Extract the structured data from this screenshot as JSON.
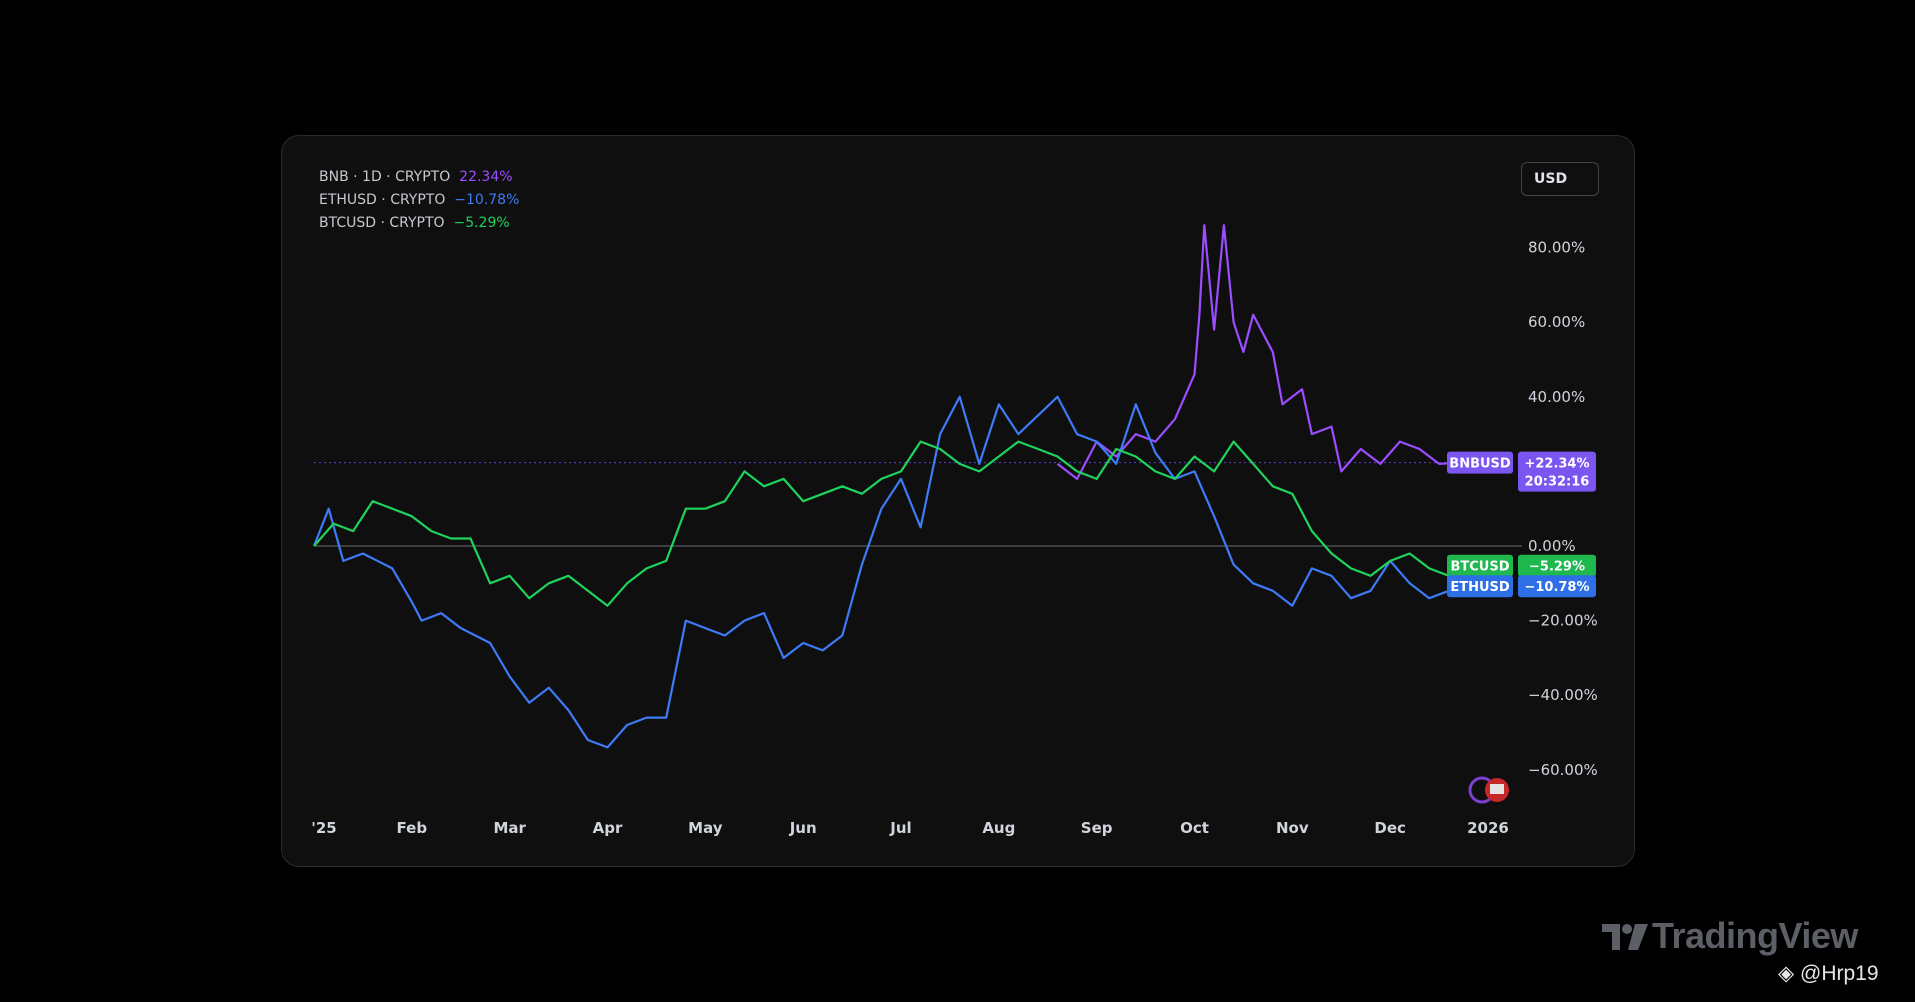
{
  "legend": [
    {
      "symbol": "BNB · 1D · CRYPTO",
      "change": "22.34%",
      "color": "#9b4dff"
    },
    {
      "symbol": "ETHUSD · CRYPTO",
      "change": "−10.78%",
      "color": "#3d7bf7"
    },
    {
      "symbol": "BTCUSD · CRYPTO",
      "change": "−5.29%",
      "color": "#1fd35c"
    }
  ],
  "currency_button": "USD",
  "price_labels": {
    "bnb": {
      "name": "BNBUSD",
      "value": "+22.34%",
      "countdown": "20:32:16",
      "color": "#7b55f0"
    },
    "btc": {
      "name": "BTCUSD",
      "value": "−5.29%",
      "color": "#1fb84f"
    },
    "eth": {
      "name": "ETHUSD",
      "value": "−10.78%",
      "color": "#2f6fe6"
    }
  },
  "zero_label": "0.00%",
  "branding": {
    "tradingview": "TradingView",
    "handle": "@Hrp19"
  },
  "chart_data": {
    "type": "line",
    "title": "",
    "xlabel": "",
    "ylabel": "",
    "x_tick_labels": [
      "'25",
      "Feb",
      "Mar",
      "Apr",
      "May",
      "Jun",
      "Jul",
      "Aug",
      "Sep",
      "Oct",
      "Nov",
      "Dec",
      "2026"
    ],
    "y_ticks": [
      "80.00%",
      "60.00%",
      "40.00%",
      "−20.00%",
      "−40.00%",
      "−60.00%"
    ],
    "ylim": [
      -70,
      90
    ],
    "x_range_months": [
      0,
      12.3
    ],
    "series": [
      {
        "name": "BNBUSD",
        "color": "#9b4dff",
        "x": [
          7.6,
          7.8,
          8.0,
          8.2,
          8.4,
          8.6,
          8.8,
          9.0,
          9.05,
          9.1,
          9.2,
          9.3,
          9.4,
          9.5,
          9.6,
          9.8,
          9.9,
          10.1,
          10.2,
          10.4,
          10.5,
          10.7,
          10.9,
          11.1,
          11.3,
          11.5,
          11.7
        ],
        "values": [
          22,
          18,
          28,
          24,
          30,
          28,
          34,
          46,
          62,
          86,
          58,
          86,
          60,
          52,
          62,
          52,
          38,
          42,
          30,
          32,
          20,
          26,
          22,
          28,
          26,
          22,
          22.34
        ]
      },
      {
        "name": "ETHUSD",
        "color": "#3d7bf7",
        "x": [
          0,
          0.15,
          0.3,
          0.5,
          0.8,
          1.0,
          1.1,
          1.3,
          1.5,
          1.8,
          2.0,
          2.2,
          2.4,
          2.6,
          2.8,
          3.0,
          3.2,
          3.4,
          3.6,
          3.8,
          4.0,
          4.2,
          4.4,
          4.6,
          4.8,
          5.0,
          5.2,
          5.4,
          5.6,
          5.8,
          6.0,
          6.2,
          6.4,
          6.6,
          6.8,
          7.0,
          7.2,
          7.4,
          7.6,
          7.8,
          8.0,
          8.2,
          8.4,
          8.6,
          8.8,
          9.0,
          9.2,
          9.4,
          9.6,
          9.8,
          10.0,
          10.2,
          10.4,
          10.6,
          10.8,
          11.0,
          11.2,
          11.4,
          11.6,
          11.75
        ],
        "values": [
          0,
          10,
          -4,
          -2,
          -6,
          -15,
          -20,
          -18,
          -22,
          -26,
          -35,
          -42,
          -38,
          -44,
          -52,
          -54,
          -48,
          -46,
          -46,
          -20,
          -22,
          -24,
          -20,
          -18,
          -30,
          -26,
          -28,
          -24,
          -5,
          10,
          18,
          5,
          30,
          40,
          22,
          38,
          30,
          35,
          40,
          30,
          28,
          22,
          38,
          25,
          18,
          20,
          8,
          -5,
          -10,
          -12,
          -16,
          -6,
          -8,
          -14,
          -12,
          -4,
          -10,
          -14,
          -12,
          -10.78
        ]
      },
      {
        "name": "BTCUSD",
        "color": "#1fd35c",
        "x": [
          0,
          0.2,
          0.4,
          0.6,
          0.8,
          1.0,
          1.2,
          1.4,
          1.6,
          1.8,
          2.0,
          2.2,
          2.4,
          2.6,
          2.8,
          3.0,
          3.2,
          3.4,
          3.6,
          3.8,
          4.0,
          4.2,
          4.4,
          4.6,
          4.8,
          5.0,
          5.2,
          5.4,
          5.6,
          5.8,
          6.0,
          6.2,
          6.4,
          6.6,
          6.8,
          7.0,
          7.2,
          7.4,
          7.6,
          7.8,
          8.0,
          8.2,
          8.4,
          8.6,
          8.8,
          9.0,
          9.2,
          9.4,
          9.6,
          9.8,
          10.0,
          10.2,
          10.4,
          10.6,
          10.8,
          11.0,
          11.2,
          11.4,
          11.6,
          11.75
        ],
        "values": [
          0,
          6,
          4,
          12,
          10,
          8,
          4,
          2,
          2,
          -10,
          -8,
          -14,
          -10,
          -8,
          -12,
          -16,
          -10,
          -6,
          -4,
          10,
          10,
          12,
          20,
          16,
          18,
          12,
          14,
          16,
          14,
          18,
          20,
          28,
          26,
          22,
          20,
          24,
          28,
          26,
          24,
          20,
          18,
          26,
          24,
          20,
          18,
          24,
          20,
          28,
          22,
          16,
          14,
          4,
          -2,
          -6,
          -8,
          -4,
          -2,
          -6,
          -8,
          -5.29
        ]
      }
    ]
  }
}
